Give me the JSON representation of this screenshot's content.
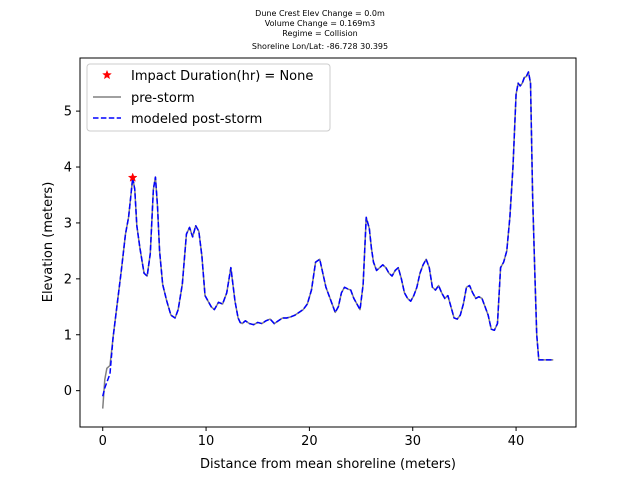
{
  "chart_data": {
    "type": "line",
    "title_lines": [
      "Dune Crest Elev Change = 0.0m",
      "Volume Change = 0.169m3",
      "Regime = Collision",
      "Shoreline Lon/Lat: -86.728 30.395"
    ],
    "xlabel": "Distance from mean shoreline (meters)",
    "ylabel": "Elevation (meters)",
    "xlim": [
      -2.2,
      45.8
    ],
    "ylim": [
      -0.65,
      5.95
    ],
    "xticks": [
      0,
      10,
      20,
      30,
      40
    ],
    "yticks": [
      0,
      1,
      2,
      3,
      4,
      5
    ],
    "grid": false,
    "legend_position": "upper-left",
    "colors": {
      "pre_storm": "#808080",
      "post_storm": "#0000ff",
      "impact_marker": "#ff0000"
    },
    "impact_point": {
      "label": "Impact Duration(hr) = None",
      "x": 2.9,
      "y": 3.81
    },
    "series": [
      {
        "name": "pre-storm",
        "style": "solid",
        "x": [
          0.0,
          0.2,
          0.4,
          0.7,
          1.0,
          1.4,
          1.8,
          2.2,
          2.5,
          2.7,
          2.9,
          3.1,
          3.3,
          3.6,
          4.0,
          4.3,
          4.6,
          4.9,
          5.1,
          5.3,
          5.5,
          5.8,
          6.2,
          6.6,
          7.0,
          7.3,
          7.7,
          8.1,
          8.4,
          8.7,
          9.0,
          9.3,
          9.6,
          9.9,
          10.2,
          10.5,
          10.8,
          11.2,
          11.6,
          12.0,
          12.4,
          12.8,
          13.1,
          13.3,
          13.5,
          13.8,
          14.2,
          14.6,
          15.0,
          15.4,
          15.8,
          16.2,
          16.6,
          17.0,
          17.4,
          17.8,
          18.2,
          18.6,
          19.0,
          19.4,
          19.8,
          20.2,
          20.6,
          21.0,
          21.3,
          21.6,
          21.9,
          22.2,
          22.5,
          22.8,
          23.1,
          23.4,
          23.7,
          24.0,
          24.3,
          24.6,
          24.9,
          25.2,
          25.5,
          25.8,
          26.0,
          26.2,
          26.5,
          26.8,
          27.1,
          27.4,
          27.7,
          28.0,
          28.3,
          28.6,
          28.9,
          29.2,
          29.5,
          29.8,
          30.1,
          30.4,
          30.7,
          31.0,
          31.3,
          31.6,
          31.9,
          32.2,
          32.5,
          32.8,
          33.1,
          33.4,
          33.7,
          34.0,
          34.3,
          34.6,
          34.9,
          35.2,
          35.5,
          35.8,
          36.1,
          36.4,
          36.7,
          37.0,
          37.3,
          37.6,
          37.9,
          38.2,
          38.5,
          38.8,
          39.1,
          39.4,
          39.7,
          40.0,
          40.2,
          40.4,
          40.6,
          40.8,
          41.0,
          41.2,
          41.4,
          41.6,
          41.8,
          42.0,
          42.2,
          42.4,
          42.6,
          42.8,
          43.0,
          43.2,
          43.4,
          43.6
        ],
        "y": [
          -0.32,
          0.2,
          0.4,
          0.45,
          0.95,
          1.55,
          2.15,
          2.8,
          3.1,
          3.45,
          3.81,
          3.6,
          2.95,
          2.55,
          2.1,
          2.05,
          2.45,
          3.6,
          3.82,
          3.3,
          2.5,
          1.9,
          1.6,
          1.35,
          1.3,
          1.45,
          1.9,
          2.8,
          2.92,
          2.75,
          2.95,
          2.85,
          2.4,
          1.7,
          1.6,
          1.5,
          1.45,
          1.58,
          1.55,
          1.75,
          2.2,
          1.6,
          1.3,
          1.22,
          1.2,
          1.25,
          1.2,
          1.18,
          1.22,
          1.2,
          1.25,
          1.28,
          1.2,
          1.25,
          1.3,
          1.3,
          1.32,
          1.35,
          1.4,
          1.45,
          1.55,
          1.8,
          2.3,
          2.35,
          2.1,
          1.85,
          1.7,
          1.55,
          1.4,
          1.5,
          1.75,
          1.85,
          1.82,
          1.8,
          1.65,
          1.55,
          1.45,
          1.9,
          3.1,
          2.9,
          2.55,
          2.3,
          2.15,
          2.2,
          2.25,
          2.2,
          2.1,
          2.05,
          2.15,
          2.2,
          2.0,
          1.75,
          1.65,
          1.6,
          1.7,
          1.85,
          2.1,
          2.25,
          2.35,
          2.2,
          1.85,
          1.8,
          1.88,
          1.75,
          1.65,
          1.7,
          1.5,
          1.3,
          1.28,
          1.35,
          1.55,
          1.85,
          1.88,
          1.75,
          1.65,
          1.68,
          1.65,
          1.5,
          1.35,
          1.1,
          1.08,
          1.2,
          2.2,
          2.3,
          2.5,
          3.1,
          4.0,
          5.3,
          5.5,
          5.45,
          5.5,
          5.6,
          5.62,
          5.7,
          5.5,
          3.5,
          2.2,
          1.0,
          0.55,
          0.55,
          0.55,
          0.55,
          0.55,
          0.55,
          0.55,
          0.55
        ]
      },
      {
        "name": "modeled post-storm",
        "style": "dashed",
        "x": [
          0.0,
          0.2,
          0.4,
          0.7,
          1.0,
          1.4,
          1.8,
          2.2,
          2.5,
          2.7,
          2.9,
          3.1,
          3.3,
          3.6,
          4.0,
          4.3,
          4.6,
          4.9,
          5.1,
          5.3,
          5.5,
          5.8,
          6.2,
          6.6,
          7.0,
          7.3,
          7.7,
          8.1,
          8.4,
          8.7,
          9.0,
          9.3,
          9.6,
          9.9,
          10.2,
          10.5,
          10.8,
          11.2,
          11.6,
          12.0,
          12.4,
          12.8,
          13.1,
          13.3,
          13.5,
          13.8,
          14.2,
          14.6,
          15.0,
          15.4,
          15.8,
          16.2,
          16.6,
          17.0,
          17.4,
          17.8,
          18.2,
          18.6,
          19.0,
          19.4,
          19.8,
          20.2,
          20.6,
          21.0,
          21.3,
          21.6,
          21.9,
          22.2,
          22.5,
          22.8,
          23.1,
          23.4,
          23.7,
          24.0,
          24.3,
          24.6,
          24.9,
          25.2,
          25.5,
          25.8,
          26.0,
          26.2,
          26.5,
          26.8,
          27.1,
          27.4,
          27.7,
          28.0,
          28.3,
          28.6,
          28.9,
          29.2,
          29.5,
          29.8,
          30.1,
          30.4,
          30.7,
          31.0,
          31.3,
          31.6,
          31.9,
          32.2,
          32.5,
          32.8,
          33.1,
          33.4,
          33.7,
          34.0,
          34.3,
          34.6,
          34.9,
          35.2,
          35.5,
          35.8,
          36.1,
          36.4,
          36.7,
          37.0,
          37.3,
          37.6,
          37.9,
          38.2,
          38.5,
          38.8,
          39.1,
          39.4,
          39.7,
          40.0,
          40.2,
          40.4,
          40.6,
          40.8,
          41.0,
          41.2,
          41.4,
          41.6,
          41.8,
          42.0,
          42.2,
          42.4,
          42.6,
          42.8,
          43.0,
          43.2,
          43.4,
          43.6
        ],
        "y": [
          -0.1,
          0.05,
          0.15,
          0.3,
          0.95,
          1.55,
          2.15,
          2.8,
          3.1,
          3.45,
          3.81,
          3.6,
          2.95,
          2.55,
          2.1,
          2.05,
          2.45,
          3.6,
          3.82,
          3.3,
          2.5,
          1.9,
          1.6,
          1.35,
          1.3,
          1.45,
          1.9,
          2.8,
          2.92,
          2.75,
          2.95,
          2.85,
          2.4,
          1.7,
          1.6,
          1.5,
          1.45,
          1.58,
          1.55,
          1.75,
          2.2,
          1.6,
          1.3,
          1.22,
          1.2,
          1.25,
          1.2,
          1.18,
          1.22,
          1.2,
          1.25,
          1.28,
          1.2,
          1.25,
          1.3,
          1.3,
          1.32,
          1.35,
          1.4,
          1.45,
          1.55,
          1.8,
          2.3,
          2.35,
          2.1,
          1.85,
          1.7,
          1.55,
          1.4,
          1.5,
          1.75,
          1.85,
          1.82,
          1.8,
          1.65,
          1.55,
          1.45,
          1.9,
          3.1,
          2.9,
          2.55,
          2.3,
          2.15,
          2.2,
          2.25,
          2.2,
          2.1,
          2.05,
          2.15,
          2.2,
          2.0,
          1.75,
          1.65,
          1.6,
          1.7,
          1.85,
          2.1,
          2.25,
          2.35,
          2.2,
          1.85,
          1.8,
          1.88,
          1.75,
          1.65,
          1.7,
          1.5,
          1.3,
          1.28,
          1.35,
          1.55,
          1.85,
          1.88,
          1.75,
          1.65,
          1.68,
          1.65,
          1.5,
          1.35,
          1.1,
          1.08,
          1.2,
          2.2,
          2.3,
          2.5,
          3.1,
          4.0,
          5.3,
          5.5,
          5.45,
          5.5,
          5.6,
          5.62,
          5.7,
          5.5,
          3.5,
          2.2,
          1.0,
          0.55,
          0.55,
          0.55,
          0.55,
          0.55,
          0.55,
          0.55,
          0.55
        ]
      }
    ]
  }
}
